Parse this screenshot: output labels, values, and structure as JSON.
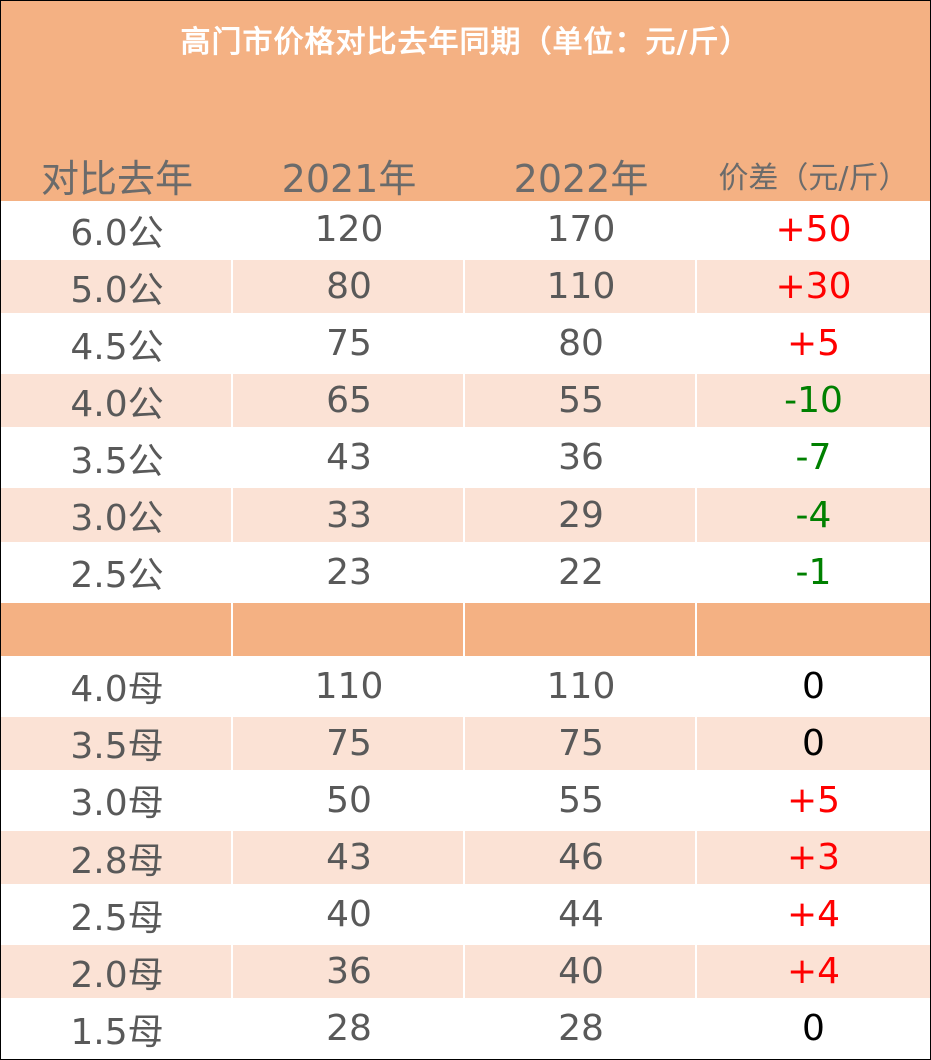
{
  "title": "高门市价格对比去年同期（单位：元/斤）",
  "columns": [
    "对比去年",
    "2021年",
    "2022年",
    "价差（元/斤）"
  ],
  "colors": {
    "header_bg": "#f4b183",
    "stripe_bg": "#fbe2d5",
    "up": "#ff0000",
    "down": "#008000",
    "zero": "#000000"
  },
  "rows": [
    {
      "label": "6.0公",
      "y2021": "120",
      "y2022": "170",
      "diff": "+50",
      "trend": "up"
    },
    {
      "label": "5.0公",
      "y2021": "80",
      "y2022": "110",
      "diff": "+30",
      "trend": "up"
    },
    {
      "label": "4.5公",
      "y2021": "75",
      "y2022": "80",
      "diff": "+5",
      "trend": "up"
    },
    {
      "label": "4.0公",
      "y2021": "65",
      "y2022": "55",
      "diff": "-10",
      "trend": "down"
    },
    {
      "label": "3.5公",
      "y2021": "43",
      "y2022": "36",
      "diff": "-7",
      "trend": "down"
    },
    {
      "label": "3.0公",
      "y2021": "33",
      "y2022": "29",
      "diff": "-4",
      "trend": "down"
    },
    {
      "label": "2.5公",
      "y2021": "23",
      "y2022": "22",
      "diff": "-1",
      "trend": "down"
    },
    {
      "separator": true
    },
    {
      "label": "4.0母",
      "y2021": "110",
      "y2022": "110",
      "diff": "0",
      "trend": "zero"
    },
    {
      "label": "3.5母",
      "y2021": "75",
      "y2022": "75",
      "diff": "0",
      "trend": "zero"
    },
    {
      "label": "3.0母",
      "y2021": "50",
      "y2022": "55",
      "diff": "+5",
      "trend": "up"
    },
    {
      "label": "2.8母",
      "y2021": "43",
      "y2022": "46",
      "diff": "+3",
      "trend": "up"
    },
    {
      "label": "2.5母",
      "y2021": "40",
      "y2022": "44",
      "diff": "+4",
      "trend": "up"
    },
    {
      "label": "2.0母",
      "y2021": "36",
      "y2022": "40",
      "diff": "+4",
      "trend": "up"
    },
    {
      "label": "1.5母",
      "y2021": "28",
      "y2022": "28",
      "diff": "0",
      "trend": "zero"
    }
  ]
}
